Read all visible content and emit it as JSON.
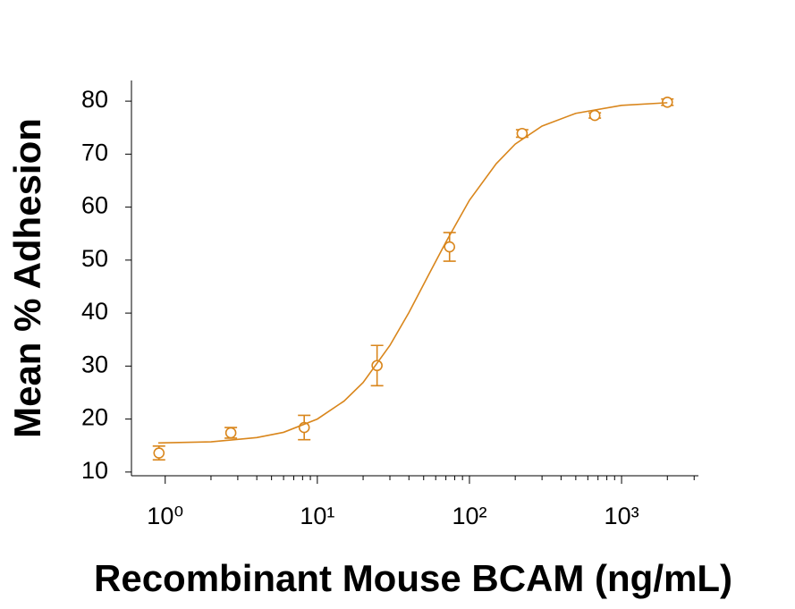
{
  "chart_data": {
    "type": "scatter",
    "xlabel": "Recombinant Mouse BCAM (ng/mL)",
    "ylabel": "Mean % Adhesion",
    "xscale": "log",
    "xlim": [
      0.6,
      3200
    ],
    "ylim": [
      9.3,
      83.9
    ],
    "xticks": [
      {
        "value": 1,
        "label": "10⁰"
      },
      {
        "value": 10,
        "label": "10¹"
      },
      {
        "value": 100,
        "label": "10²"
      },
      {
        "value": 1000,
        "label": "10³"
      }
    ],
    "xminorticks": [
      2,
      3,
      4,
      5,
      6,
      7,
      8,
      9,
      20,
      30,
      40,
      50,
      60,
      70,
      80,
      90,
      200,
      300,
      400,
      500,
      600,
      700,
      800,
      900,
      2000,
      3000
    ],
    "yticks": [
      10,
      20,
      30,
      40,
      50,
      60,
      70,
      80
    ],
    "series": [
      {
        "mode": "markers",
        "color": "#d9861c",
        "x": [
          0.91,
          2.7,
          8.2,
          24.7,
          74,
          222,
          667,
          2000
        ],
        "values": [
          13.6,
          17.4,
          18.4,
          30.1,
          52.5,
          73.9,
          77.3,
          79.8
        ],
        "errors": [
          1.3,
          1.0,
          2.3,
          3.8,
          2.7,
          0.7,
          0.5,
          0.6
        ]
      },
      {
        "mode": "line",
        "color": "#d9861c",
        "x": [
          0.9,
          2,
          4,
          6,
          10,
          15,
          20,
          30,
          40,
          55,
          70,
          100,
          150,
          200,
          300,
          500,
          1000,
          2000
        ],
        "values": [
          15.5,
          15.7,
          16.5,
          17.5,
          20.0,
          23.4,
          26.9,
          33.9,
          40.1,
          47.7,
          53.4,
          61.3,
          68.2,
          71.9,
          75.3,
          77.7,
          79.2,
          79.7
        ]
      }
    ]
  }
}
